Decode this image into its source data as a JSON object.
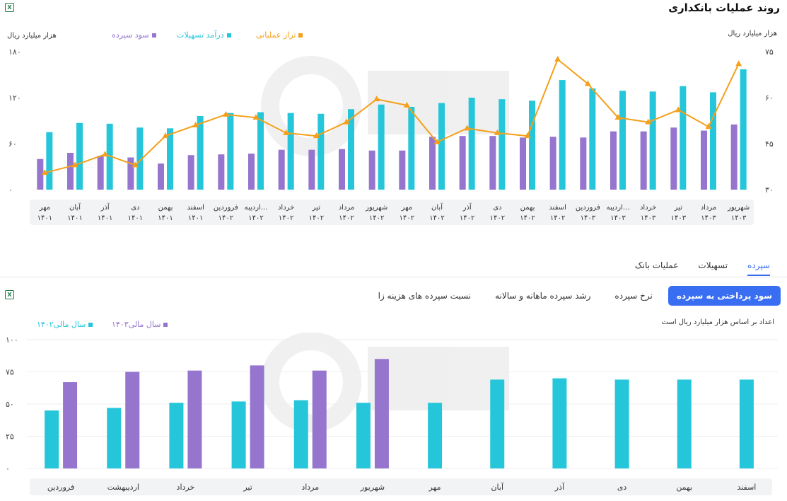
{
  "header": {
    "title": "روند عملیات بانکداری",
    "excel_icon": "excel-icon"
  },
  "chart1": {
    "ylabel_left": "هزار میلیارد ریال",
    "ylabel_right": "هزار میلیارد ریال",
    "legend": [
      {
        "label": "تراز عملیاتی",
        "color": "#f5a01a"
      },
      {
        "label": "درآمد تسهیلات",
        "color": "#26c6da"
      },
      {
        "label": "سود سپرده",
        "color": "#9575cd"
      }
    ]
  },
  "tabs": [
    {
      "label": "سپرده",
      "active": true
    },
    {
      "label": "تسهیلات",
      "active": false
    },
    {
      "label": "عملیات بانک",
      "active": false
    }
  ],
  "pills": [
    {
      "label": "سود پرداختی به سپرده",
      "active": true
    },
    {
      "label": "نرخ سپرده",
      "active": false
    },
    {
      "label": "رشد سپرده ماهانه و سالانه",
      "active": false
    },
    {
      "label": "نسبت سپرده های هزینه زا",
      "active": false
    }
  ],
  "chart2": {
    "note": "اعداد بر اساس هزار میلیارد ریال است",
    "legend": [
      {
        "label": "سال مالی۱۴۰۳",
        "color": "#9575cd"
      },
      {
        "label": "سال مالی۱۴۰۲",
        "color": "#26c6da"
      }
    ]
  },
  "chart_data": [
    {
      "type": "bar",
      "title": "روند عملیات بانکداری",
      "categories": [
        "مهر|۱۴۰۱",
        "آبان|۱۴۰۱",
        "آذر|۱۴۰۱",
        "دی|۱۴۰۱",
        "بهمن|۱۴۰۱",
        "اسفند|۱۴۰۱",
        "فروردین|۱۴۰۲",
        "اردیبه...|۱۴۰۲",
        "خرداد|۱۴۰۲",
        "تیر|۱۴۰۲",
        "مرداد|۱۴۰۲",
        "شهریور|۱۴۰۲",
        "مهر|۱۴۰۲",
        "آبان|۱۴۰۲",
        "آذر|۱۴۰۲",
        "دی|۱۴۰۲",
        "بهمن|۱۴۰۲",
        "اسفند|۱۴۰۲",
        "فروردین|۱۴۰۳",
        "اردیبه...|۱۴۰۳",
        "خرداد|۱۴۰۳",
        "تیر|۱۴۰۳",
        "مرداد|۱۴۰۳",
        "شهریور|۱۴۰۳"
      ],
      "ylabel": "هزار میلیارد ریال",
      "ylim_left": [
        0,
        180
      ],
      "left_ticks": [
        "۰",
        "۶۰",
        "۱۲۰",
        "۱۸۰"
      ],
      "ylim_right": [
        30,
        75
      ],
      "right_ticks": [
        "۳۰",
        "۴۵",
        "۶۰",
        "۷۵"
      ],
      "series": [
        {
          "name": "سود سپرده",
          "color": "#9575cd",
          "axis": "left",
          "values": [
            40,
            48,
            44,
            42,
            34,
            45,
            46,
            47,
            52,
            52,
            53,
            51,
            51,
            69,
            70,
            70,
            68,
            69,
            68,
            76,
            76,
            81,
            77,
            85
          ]
        },
        {
          "name": "درآمد تسهیلات",
          "color": "#26c6da",
          "axis": "left",
          "values": [
            75,
            87,
            86,
            81,
            80,
            96,
            100,
            101,
            100,
            99,
            105,
            111,
            108,
            113,
            120,
            118,
            116,
            143,
            132,
            129,
            128,
            135,
            127,
            157
          ]
        },
        {
          "name": "تراز عملیاتی",
          "color": "#f5a01a",
          "axis": "right",
          "type": "line",
          "values": [
            35.5,
            38,
            41.5,
            38,
            47.5,
            51,
            54.5,
            53.5,
            48.5,
            47.5,
            52,
            59.5,
            57.5,
            45.5,
            50,
            48.5,
            47.5,
            72.5,
            64.5,
            53.5,
            52,
            56,
            50.5,
            71
          ]
        }
      ]
    },
    {
      "type": "bar",
      "title": "سود پرداختی به سپرده",
      "categories": [
        "فروردین",
        "اردیبهشت",
        "خرداد",
        "تیر",
        "مرداد",
        "شهریور",
        "مهر",
        "آبان",
        "آذر",
        "دی",
        "بهمن",
        "اسفند"
      ],
      "ylim": [
        0,
        100
      ],
      "ticks": [
        "۰",
        "۲۵",
        "۵۰",
        "۷۵",
        "۱۰۰"
      ],
      "series": [
        {
          "name": "سال مالی۱۴۰۲",
          "color": "#26c6da",
          "values": [
            45,
            47,
            51,
            52,
            53,
            51,
            51,
            69,
            70,
            69,
            69,
            69
          ]
        },
        {
          "name": "سال مالی۱۴۰۳",
          "color": "#9575cd",
          "values": [
            67,
            75,
            76,
            80,
            76,
            85,
            null,
            null,
            null,
            null,
            null,
            null
          ]
        }
      ]
    }
  ]
}
